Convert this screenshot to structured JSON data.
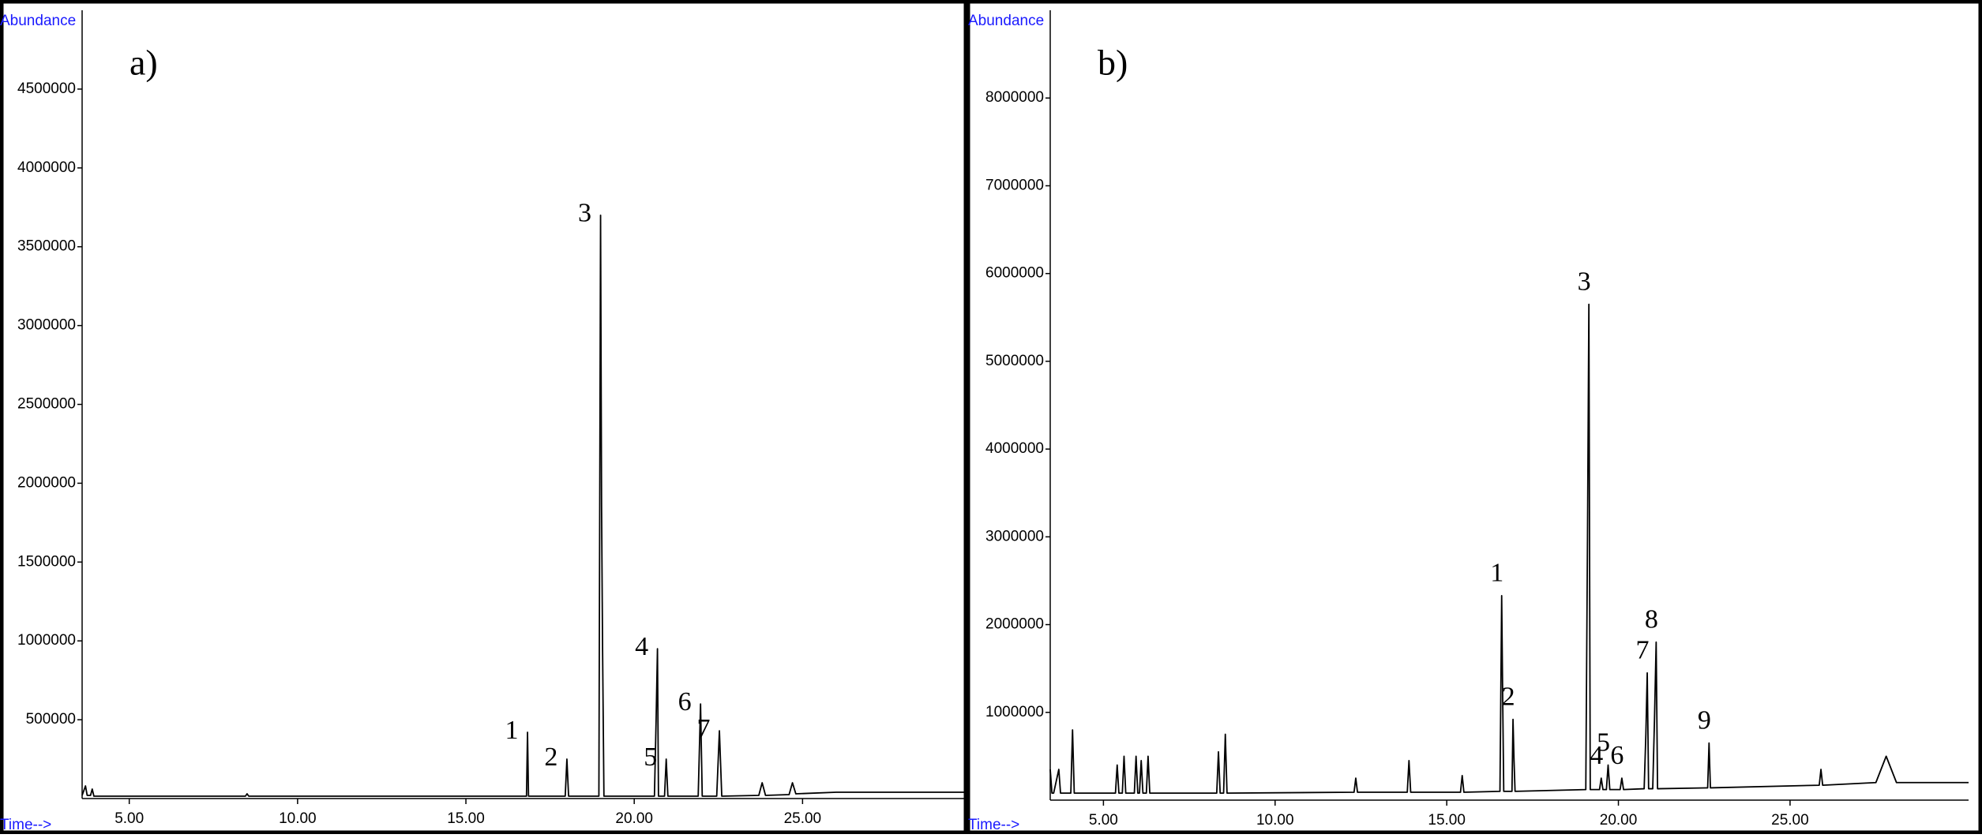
{
  "chart_data": [
    {
      "type": "line",
      "title": "a)",
      "ylabel": "Abundance",
      "xlabel": "Time-->",
      "color": "#000000",
      "xlim": [
        3.6,
        29.8
      ],
      "ylim": [
        0,
        5000000
      ],
      "xticks": [
        {
          "value": 5,
          "label": "5.00"
        },
        {
          "value": 10,
          "label": "10.00"
        },
        {
          "value": 15,
          "label": "15.00"
        },
        {
          "value": 20,
          "label": "20.00"
        },
        {
          "value": 25,
          "label": "25.00"
        }
      ],
      "yticks": [
        500000,
        1000000,
        1500000,
        2000000,
        2500000,
        3000000,
        3500000,
        4000000,
        4500000
      ],
      "x": [
        3.6,
        3.7,
        3.75,
        3.85,
        3.9,
        3.95,
        8.45,
        8.5,
        8.55,
        15.5,
        16.8,
        16.83,
        16.86,
        17.95,
        18.0,
        18.05,
        18.95,
        19.0,
        19.03,
        19.06,
        19.1,
        19.15,
        20.6,
        20.65,
        20.69,
        20.72,
        20.9,
        20.95,
        21.0,
        21.9,
        21.97,
        22.02,
        22.45,
        22.53,
        22.6,
        23.7,
        23.8,
        23.9,
        24.6,
        24.7,
        24.8,
        26.0,
        29.8
      ],
      "values": [
        20000,
        80000,
        20000,
        20000,
        60000,
        15000,
        15000,
        30000,
        15000,
        15000,
        15000,
        420000,
        15000,
        15000,
        250000,
        15000,
        15000,
        3700000,
        1850000,
        940000,
        15000,
        15000,
        15000,
        500000,
        950000,
        15000,
        15000,
        250000,
        15000,
        15000,
        600000,
        15000,
        15000,
        430000,
        15000,
        20000,
        100000,
        20000,
        25000,
        100000,
        30000,
        40000,
        40000
      ],
      "annotations": [
        "1",
        "2",
        "3",
        "4",
        "5",
        "6",
        "7"
      ]
    },
    {
      "type": "line",
      "title": "b)",
      "ylabel": "Abundance",
      "xlabel": "Time-->",
      "color": "#000000",
      "xlim": [
        3.45,
        30.2
      ],
      "ylim": [
        0,
        9000000
      ],
      "xticks": [
        {
          "value": 5,
          "label": "5.00"
        },
        {
          "value": 10,
          "label": "10.00"
        },
        {
          "value": 15,
          "label": "15.00"
        },
        {
          "value": 20,
          "label": "20.00"
        },
        {
          "value": 25,
          "label": "25.00"
        }
      ],
      "yticks": [
        1000000,
        2000000,
        3000000,
        4000000,
        5000000,
        6000000,
        7000000,
        8000000
      ],
      "x": [
        3.45,
        3.5,
        3.55,
        3.7,
        3.75,
        4.05,
        4.1,
        4.15,
        5.35,
        5.4,
        5.45,
        5.55,
        5.6,
        5.65,
        5.9,
        5.95,
        6.0,
        6.05,
        6.1,
        6.15,
        6.25,
        6.3,
        6.35,
        8.3,
        8.35,
        8.4,
        8.5,
        8.55,
        8.6,
        12.3,
        12.35,
        12.4,
        13.85,
        13.9,
        13.95,
        15.4,
        15.45,
        15.5,
        16.55,
        16.6,
        16.63,
        16.66,
        16.9,
        16.93,
        16.96,
        16.99,
        19.05,
        19.1,
        19.14,
        19.18,
        19.45,
        19.5,
        19.55,
        19.65,
        19.7,
        19.75,
        20.05,
        20.1,
        20.15,
        20.75,
        20.8,
        20.84,
        20.88,
        21.0,
        21.05,
        21.1,
        21.14,
        22.6,
        22.64,
        22.68,
        25.85,
        25.9,
        25.95,
        27.5,
        27.8,
        28.1,
        30.2
      ],
      "values": [
        350000,
        80000,
        80000,
        350000,
        80000,
        80000,
        800000,
        80000,
        80000,
        400000,
        80000,
        80000,
        500000,
        80000,
        80000,
        500000,
        80000,
        80000,
        450000,
        80000,
        80000,
        500000,
        80000,
        80000,
        550000,
        80000,
        80000,
        750000,
        80000,
        90000,
        250000,
        90000,
        90000,
        450000,
        90000,
        90000,
        280000,
        90000,
        100000,
        2330000,
        1150000,
        100000,
        100000,
        920000,
        450000,
        100000,
        120000,
        3000000,
        5650000,
        120000,
        120000,
        250000,
        120000,
        120000,
        400000,
        120000,
        120000,
        250000,
        120000,
        130000,
        750000,
        1450000,
        130000,
        130000,
        900000,
        1800000,
        130000,
        140000,
        650000,
        140000,
        170000,
        350000,
        170000,
        200000,
        500000,
        200000,
        200000
      ],
      "annotations": [
        "1",
        "2",
        "3",
        "4",
        "5",
        "6",
        "7",
        "8",
        "9"
      ]
    }
  ]
}
